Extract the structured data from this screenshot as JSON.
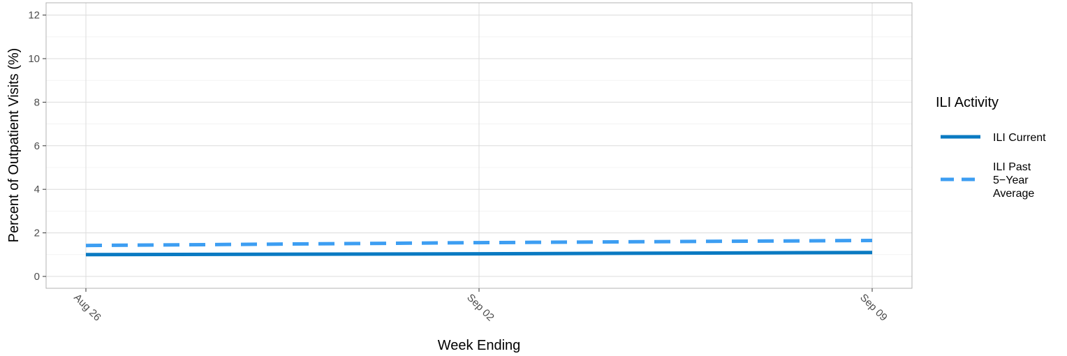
{
  "chart_data": {
    "type": "line",
    "xlabel": "Week Ending",
    "ylabel": "Percent of Outpatient Visits (%)",
    "x": [
      "Aug 26",
      "Sep 02",
      "Sep 09"
    ],
    "ylim": [
      0,
      12
    ],
    "yticks": [
      0,
      2,
      4,
      6,
      8,
      10,
      12
    ],
    "grid": true,
    "legend": {
      "title": "ILI Activity",
      "position": "right"
    },
    "series": [
      {
        "name": "ILI Current",
        "legend_lines": [
          "ILI Current"
        ],
        "values": [
          1.0,
          1.04,
          1.1
        ],
        "color": "#0a7ac2",
        "style": "solid"
      },
      {
        "name": "ILI Past 5-Year Average",
        "legend_lines": [
          "ILI Past",
          "5−Year",
          "Average"
        ],
        "values": [
          1.42,
          1.55,
          1.65
        ],
        "color": "#3d9ef2",
        "style": "dashed"
      }
    ]
  }
}
